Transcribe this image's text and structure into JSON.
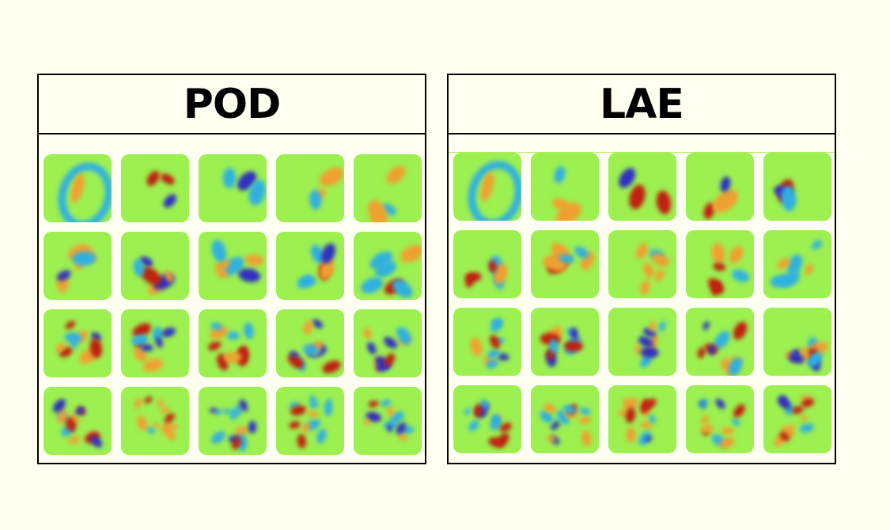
{
  "figure": {
    "background": "#fefff0",
    "panels": [
      {
        "id": "pod",
        "title": "POD",
        "rows": 4,
        "cols": 5
      },
      {
        "id": "lae",
        "title": "LAE",
        "rows": 4,
        "cols": 5
      }
    ],
    "colormap": {
      "low": "#3030c0",
      "mid_low": "#30b0e0",
      "neutral": "#9cf050",
      "mid_high": "#f0a030",
      "high": "#c02010"
    }
  }
}
